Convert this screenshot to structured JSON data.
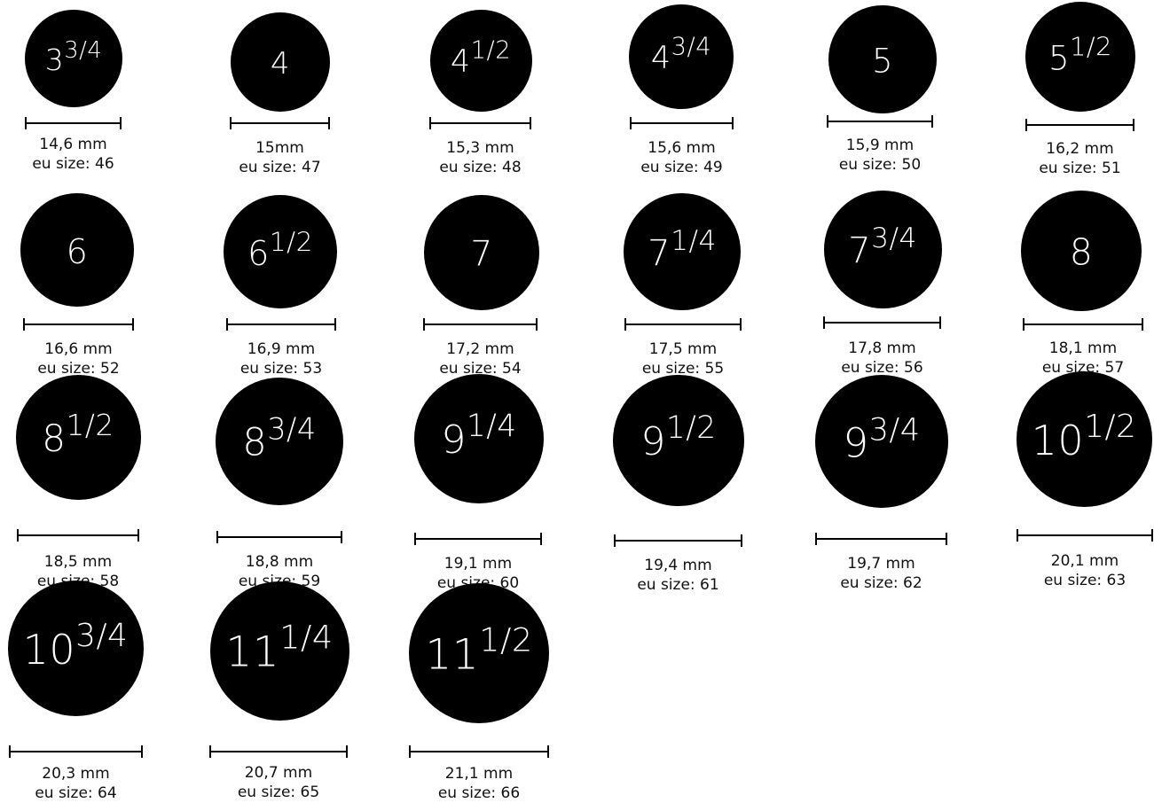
{
  "sizes": [
    {
      "whole": "3",
      "fraction": "3/4",
      "mm": "14,6 mm",
      "eu": "eu size: 46"
    },
    {
      "whole": "4",
      "fraction": "",
      "mm": "15mm",
      "eu": "eu size: 47"
    },
    {
      "whole": "4",
      "fraction": "1/2",
      "mm": "15,3 mm",
      "eu": "eu size: 48"
    },
    {
      "whole": "4",
      "fraction": "3/4",
      "mm": "15,6 mm",
      "eu": "eu size: 49"
    },
    {
      "whole": "5",
      "fraction": "",
      "mm": "15,9 mm",
      "eu": "eu size: 50"
    },
    {
      "whole": "5",
      "fraction": "1/2",
      "mm": "16,2 mm",
      "eu": "eu size: 51"
    },
    {
      "whole": "6",
      "fraction": "",
      "mm": "16,6 mm",
      "eu": "eu size: 52"
    },
    {
      "whole": "6",
      "fraction": "1/2",
      "mm": "16,9 mm",
      "eu": "eu size: 53"
    },
    {
      "whole": "7",
      "fraction": "",
      "mm": "17,2 mm",
      "eu": "eu size: 54"
    },
    {
      "whole": "7",
      "fraction": "1/4",
      "mm": "17,5 mm",
      "eu": "eu size: 55"
    },
    {
      "whole": "7",
      "fraction": "3/4",
      "mm": "17,8 mm",
      "eu": "eu size: 56"
    },
    {
      "whole": "8",
      "fraction": "",
      "mm": "18,1 mm",
      "eu": "eu size: 57"
    },
    {
      "whole": "8",
      "fraction": "1/2",
      "mm": "18,5 mm",
      "eu": "eu size: 58"
    },
    {
      "whole": "8",
      "fraction": "3/4",
      "mm": "18,8 mm",
      "eu": "eu size: 59"
    },
    {
      "whole": "9",
      "fraction": "1/4",
      "mm": "19,1 mm",
      "eu": "eu size: 60"
    },
    {
      "whole": "9",
      "fraction": "1/2",
      "mm": "19,4 mm",
      "eu": "eu size: 61"
    },
    {
      "whole": "9",
      "fraction": "3/4",
      "mm": "19,7 mm",
      "eu": "eu size: 62"
    },
    {
      "whole": "10",
      "fraction": "1/2",
      "mm": "20,1 mm",
      "eu": "eu size: 63"
    },
    {
      "whole": "10",
      "fraction": "3/4",
      "mm": "20,3 mm",
      "eu": "eu size: 64"
    },
    {
      "whole": "11",
      "fraction": "1/4",
      "mm": "20,7 mm",
      "eu": "eu size: 65"
    },
    {
      "whole": "11",
      "fraction": "1/2",
      "mm": "21,1 mm",
      "eu": "eu size: 66"
    }
  ],
  "colors": {
    "ring": "#000000",
    "label": "#ffffff",
    "text": "#111111"
  }
}
